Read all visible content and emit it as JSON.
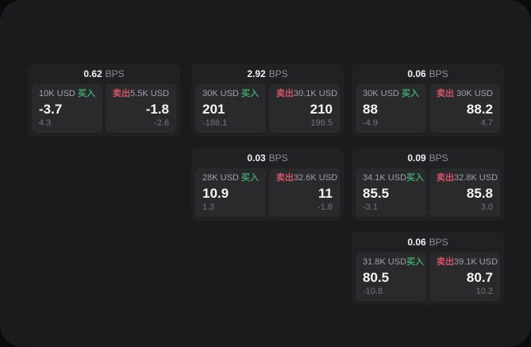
{
  "labels": {
    "bps_unit": "BPS",
    "buy": "买入",
    "sell": "卖出"
  },
  "colors": {
    "background": "#1b1b1d",
    "card": "#212124",
    "panel": "#2a2a2d",
    "buy_green": "#3fa466",
    "sell_red": "#cf5466",
    "text_primary": "#f5f5f6",
    "text_secondary": "#a1a1a6",
    "text_muted": "#757579"
  },
  "cards": [
    {
      "bps": "0.62",
      "buy": {
        "amount": "10K USD",
        "price": "-3.7",
        "change": "4.3"
      },
      "sell": {
        "amount": "5.5K USD",
        "price": "-1.8",
        "change": "-2.6"
      }
    },
    {
      "bps": "2.92",
      "buy": {
        "amount": "30K USD",
        "price": "201",
        "change": "-188.1"
      },
      "sell": {
        "amount": "30.1K USD",
        "price": "210",
        "change": "196.5"
      }
    },
    {
      "bps": "0.06",
      "buy": {
        "amount": "30K USD",
        "price": "88",
        "change": "-4.9"
      },
      "sell": {
        "amount": "30K USD",
        "price": "88.2",
        "change": "4.7"
      }
    },
    {
      "bps": "0.03",
      "buy": {
        "amount": "28K USD",
        "price": "10.9",
        "change": "1.3"
      },
      "sell": {
        "amount": "32.6K USD",
        "price": "11",
        "change": "-1.8"
      }
    },
    {
      "bps": "0.09",
      "buy": {
        "amount": "34.1K USD",
        "price": "85.5",
        "change": "-3.1"
      },
      "sell": {
        "amount": "32.8K USD",
        "price": "85.8",
        "change": "3.0"
      }
    },
    {
      "bps": "0.06",
      "buy": {
        "amount": "31.8K USD",
        "price": "80.5",
        "change": "-10.8"
      },
      "sell": {
        "amount": "39.1K USD",
        "price": "80.7",
        "change": "10.2"
      }
    }
  ]
}
